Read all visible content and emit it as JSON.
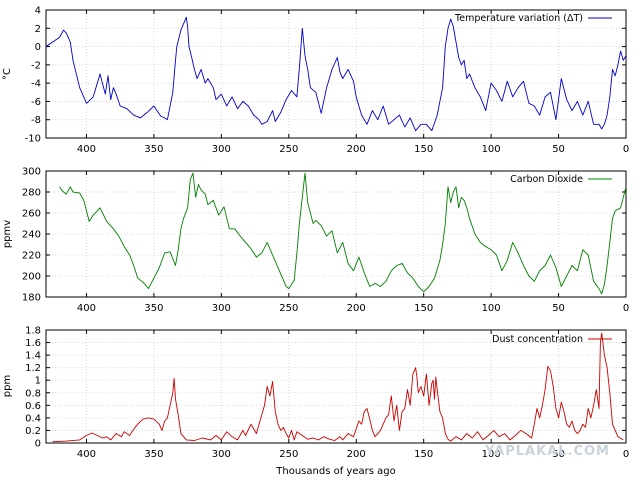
{
  "chart_data": [
    {
      "type": "line",
      "ylabel": "°C",
      "xlabel": "",
      "xlim": [
        0,
        430
      ],
      "x_reversed": true,
      "ylim": [
        -10,
        4
      ],
      "yticks": [
        -10,
        -8,
        -6,
        -4,
        -2,
        0,
        2,
        4
      ],
      "xticks": [
        400,
        350,
        300,
        250,
        200,
        150,
        100,
        50,
        0
      ],
      "grid": true,
      "legend_position": "top-right",
      "series": [
        {
          "name": "Temperature variation (ΔT)",
          "color": "#0000cc",
          "x": [
            430,
            425,
            420,
            417,
            415,
            412,
            410,
            405,
            400,
            395,
            392,
            390,
            386,
            384,
            382,
            380,
            378,
            375,
            370,
            365,
            360,
            355,
            350,
            345,
            342,
            340,
            336,
            334,
            333,
            330,
            326,
            325,
            324,
            322,
            320,
            318,
            315,
            312,
            310,
            306,
            304,
            300,
            296,
            292,
            288,
            284,
            280,
            276,
            272,
            270,
            266,
            262,
            260,
            256,
            252,
            248,
            244,
            242,
            240,
            238,
            236,
            234,
            230,
            226,
            222,
            218,
            214,
            212,
            210,
            206,
            202,
            200,
            196,
            192,
            188,
            184,
            180,
            176,
            172,
            168,
            164,
            160,
            156,
            152,
            148,
            144,
            140,
            136,
            134,
            132,
            130,
            128,
            126,
            124,
            122,
            120,
            118,
            116,
            112,
            108,
            104,
            100,
            96,
            92,
            88,
            84,
            80,
            76,
            72,
            68,
            64,
            60,
            56,
            52,
            48,
            44,
            40,
            36,
            32,
            28,
            24,
            20,
            18,
            16,
            14,
            12,
            10,
            8,
            6,
            4,
            2,
            0
          ],
          "y": [
            0,
            0.5,
            1,
            1.8,
            1.5,
            0.5,
            -1.5,
            -4.5,
            -6.2,
            -5.5,
            -4,
            -3,
            -5.2,
            -3.2,
            -5.8,
            -4.5,
            -5.2,
            -6.5,
            -6.8,
            -7.5,
            -7.8,
            -7.2,
            -6.5,
            -7.6,
            -7.8,
            -8,
            -5,
            -1.5,
            0,
            1.8,
            3.2,
            2.2,
            0,
            -1.2,
            -2.5,
            -3.5,
            -2.5,
            -4,
            -3.5,
            -4.5,
            -5.8,
            -5.2,
            -6.5,
            -5.5,
            -6.8,
            -6,
            -6.5,
            -7.5,
            -8,
            -8.5,
            -8.2,
            -7,
            -8.2,
            -7.2,
            -5.8,
            -4.8,
            -5.5,
            -2,
            2,
            -1,
            -2.5,
            -4.5,
            -5,
            -7.3,
            -4.5,
            -2.5,
            -1.2,
            -2.8,
            -3.5,
            -2.5,
            -3.8,
            -5.5,
            -7.5,
            -8.5,
            -7,
            -8,
            -6.5,
            -8.5,
            -8,
            -7.5,
            -8.8,
            -7.8,
            -9.2,
            -8.5,
            -8.5,
            -9.2,
            -7.5,
            -4.5,
            0,
            2,
            3,
            2.2,
            0.5,
            -1.2,
            -2,
            -1.5,
            -3.5,
            -3,
            -4.5,
            -5.5,
            -7,
            -4,
            -4.8,
            -6,
            -3.8,
            -5.5,
            -4.5,
            -3.8,
            -6.2,
            -6.5,
            -7.5,
            -5.5,
            -5,
            -8,
            -3.5,
            -5.8,
            -7,
            -6,
            -7.5,
            -6,
            -8.5,
            -8.5,
            -9,
            -8.5,
            -7.5,
            -5.5,
            -2.5,
            -3.2,
            -2,
            -0.5,
            -1.5,
            -1
          ]
        }
      ]
    },
    {
      "type": "line",
      "ylabel": "ppmv",
      "xlabel": "",
      "xlim": [
        0,
        430
      ],
      "x_reversed": true,
      "ylim": [
        180,
        300
      ],
      "yticks": [
        180,
        200,
        220,
        240,
        260,
        280,
        300
      ],
      "xticks": [
        400,
        350,
        300,
        250,
        200,
        150,
        100,
        50,
        0
      ],
      "grid": true,
      "legend_position": "top-right",
      "series": [
        {
          "name": "Carbon Dioxide",
          "color": "#008000",
          "x": [
            420,
            418,
            415,
            412,
            410,
            405,
            402,
            400,
            398,
            395,
            392,
            390,
            385,
            380,
            376,
            372,
            368,
            365,
            362,
            358,
            354,
            350,
            346,
            342,
            338,
            334,
            332,
            330,
            328,
            325,
            323,
            321,
            319,
            317,
            315,
            312,
            310,
            306,
            302,
            298,
            294,
            290,
            286,
            282,
            278,
            274,
            270,
            266,
            262,
            258,
            254,
            252,
            250,
            246,
            244,
            242,
            240,
            238,
            236,
            234,
            232,
            230,
            226,
            222,
            218,
            214,
            210,
            206,
            202,
            198,
            194,
            190,
            186,
            182,
            178,
            174,
            170,
            166,
            162,
            158,
            154,
            150,
            146,
            142,
            138,
            136,
            134,
            132,
            130,
            128,
            126,
            124,
            122,
            120,
            118,
            116,
            112,
            108,
            104,
            100,
            96,
            92,
            88,
            84,
            80,
            76,
            72,
            68,
            64,
            60,
            56,
            52,
            48,
            44,
            40,
            36,
            32,
            28,
            24,
            20,
            18,
            16,
            14,
            12,
            10,
            8,
            4,
            2,
            0
          ],
          "y": [
            285,
            281,
            278,
            285,
            280,
            279,
            272,
            262,
            252,
            258,
            262,
            265,
            252,
            245,
            238,
            228,
            220,
            210,
            198,
            194,
            188,
            198,
            208,
            222,
            223,
            210,
            225,
            245,
            255,
            265,
            292,
            298,
            275,
            287,
            282,
            278,
            268,
            272,
            258,
            266,
            245,
            245,
            238,
            232,
            226,
            218,
            222,
            232,
            220,
            208,
            196,
            190,
            188,
            196,
            222,
            252,
            275,
            298,
            270,
            260,
            250,
            253,
            248,
            238,
            243,
            222,
            232,
            212,
            205,
            218,
            203,
            190,
            193,
            190,
            195,
            205,
            210,
            212,
            203,
            198,
            190,
            185,
            190,
            198,
            215,
            230,
            250,
            285,
            270,
            280,
            285,
            265,
            275,
            272,
            265,
            255,
            240,
            232,
            228,
            225,
            220,
            205,
            215,
            232,
            222,
            210,
            200,
            195,
            205,
            210,
            220,
            208,
            190,
            200,
            210,
            205,
            225,
            220,
            195,
            188,
            183,
            192,
            210,
            232,
            255,
            262,
            265,
            275,
            285
          ]
        }
      ]
    },
    {
      "type": "line",
      "ylabel": "ppm",
      "xlabel": "Thousands of years ago",
      "xlim": [
        0,
        430
      ],
      "x_reversed": true,
      "ylim": [
        0,
        1.8
      ],
      "yticks": [
        0,
        0.2,
        0.4,
        0.6,
        0.8,
        1,
        1.2,
        1.4,
        1.6,
        1.8
      ],
      "xticks": [
        400,
        350,
        300,
        250,
        200,
        150,
        100,
        50,
        0
      ],
      "grid": true,
      "legend_position": "top-right",
      "series": [
        {
          "name": "Dust concentration",
          "color": "#cc0000",
          "x": [
            425,
            415,
            405,
            400,
            396,
            392,
            388,
            385,
            382,
            378,
            374,
            372,
            368,
            365,
            362,
            358,
            354,
            350,
            346,
            344,
            342,
            340,
            338,
            336,
            335,
            334,
            332,
            330,
            326,
            320,
            314,
            308,
            304,
            300,
            296,
            292,
            288,
            284,
            282,
            278,
            274,
            270,
            268,
            266,
            264,
            262,
            260,
            258,
            256,
            254,
            252,
            250,
            248,
            246,
            244,
            240,
            236,
            232,
            228,
            224,
            220,
            216,
            212,
            210,
            206,
            202,
            198,
            196,
            194,
            192,
            190,
            188,
            186,
            182,
            178,
            176,
            174,
            172,
            170,
            168,
            166,
            164,
            162,
            160,
            158,
            156,
            155,
            154,
            152,
            150,
            148,
            146,
            144,
            143,
            142,
            141,
            140,
            138,
            136,
            134,
            132,
            130,
            126,
            122,
            118,
            114,
            110,
            106,
            102,
            98,
            94,
            90,
            86,
            82,
            78,
            74,
            70,
            68,
            66,
            64,
            62,
            60,
            58,
            56,
            54,
            52,
            50,
            48,
            46,
            44,
            42,
            40,
            38,
            36,
            34,
            32,
            30,
            28,
            26,
            24,
            22,
            20,
            19,
            18,
            16,
            14,
            12,
            10,
            6,
            2
          ],
          "y": [
            0.02,
            0.03,
            0.05,
            0.12,
            0.16,
            0.12,
            0.08,
            0.1,
            0.05,
            0.15,
            0.1,
            0.18,
            0.12,
            0.22,
            0.3,
            0.38,
            0.4,
            0.38,
            0.3,
            0.2,
            0.35,
            0.4,
            0.6,
            0.8,
            1.03,
            0.7,
            0.45,
            0.15,
            0.05,
            0.04,
            0.08,
            0.05,
            0.12,
            0.05,
            0.18,
            0.1,
            0.05,
            0.2,
            0.12,
            0.3,
            0.15,
            0.45,
            0.6,
            0.9,
            0.75,
            0.98,
            0.5,
            0.3,
            0.2,
            0.25,
            0.15,
            0.08,
            0.2,
            0.05,
            0.18,
            0.12,
            0.06,
            0.08,
            0.05,
            0.1,
            0.06,
            0.04,
            0.1,
            0.05,
            0.15,
            0.1,
            0.35,
            0.3,
            0.5,
            0.55,
            0.38,
            0.2,
            0.1,
            0.2,
            0.4,
            0.45,
            0.75,
            0.35,
            0.6,
            0.2,
            0.5,
            0.55,
            0.85,
            0.6,
            1.1,
            1.2,
            1.05,
            0.8,
            0.9,
            0.75,
            1.1,
            0.6,
            0.95,
            1.0,
            0.7,
            1.05,
            0.85,
            0.5,
            0.4,
            0.15,
            0.06,
            0.03,
            0.1,
            0.05,
            0.15,
            0.08,
            0.18,
            0.05,
            0.12,
            0.2,
            0.1,
            0.15,
            0.05,
            0.12,
            0.2,
            0.15,
            0.08,
            0.3,
            0.55,
            0.4,
            0.6,
            0.85,
            1.22,
            1.15,
            0.9,
            0.55,
            0.4,
            0.65,
            0.5,
            0.3,
            0.25,
            0.35,
            0.2,
            0.15,
            0.2,
            0.3,
            0.25,
            0.55,
            0.4,
            0.6,
            0.85,
            0.55,
            1.6,
            1.75,
            1.4,
            1.2,
            0.8,
            0.3,
            0.1,
            0.05
          ]
        }
      ]
    }
  ],
  "watermark": "YAPLAKAL.COM"
}
